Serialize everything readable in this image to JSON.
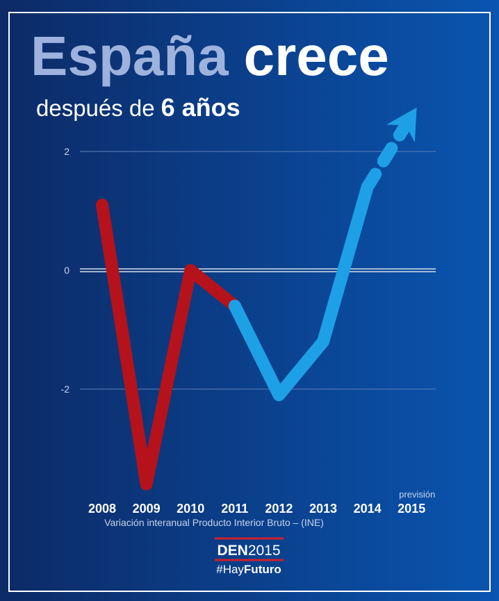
{
  "chart_data": {
    "type": "line",
    "title": {
      "part1": "España",
      "part2": "crece"
    },
    "subtitle": {
      "part1": "después de",
      "part2": "6 años"
    },
    "categories": [
      "2008",
      "2009",
      "2010",
      "2011",
      "2012",
      "2013",
      "2014",
      "2015"
    ],
    "forecast_label": "previsión",
    "x_label": "Variación interanual Producto Interior Bruto – (INE)",
    "series": [
      {
        "color": "#b5121b",
        "dashed": false,
        "values": [
          1.1,
          -3.6,
          0.0,
          -0.6,
          null,
          null,
          null,
          null
        ]
      },
      {
        "color": "#1ea0e6",
        "dashed": false,
        "values": [
          null,
          null,
          null,
          -0.6,
          -2.1,
          -1.2,
          1.4,
          null
        ]
      },
      {
        "color": "#1ea0e6",
        "dashed": true,
        "arrow": true,
        "values": [
          null,
          null,
          null,
          null,
          null,
          null,
          1.4,
          2.6
        ]
      }
    ],
    "ylim": [
      -4,
      3
    ],
    "yticks": [
      -2,
      0,
      2
    ],
    "grid": true,
    "footer": {
      "brand1": "DEN",
      "brand2": "2015",
      "tag1": "#Hay",
      "tag2": "Futuro"
    }
  }
}
